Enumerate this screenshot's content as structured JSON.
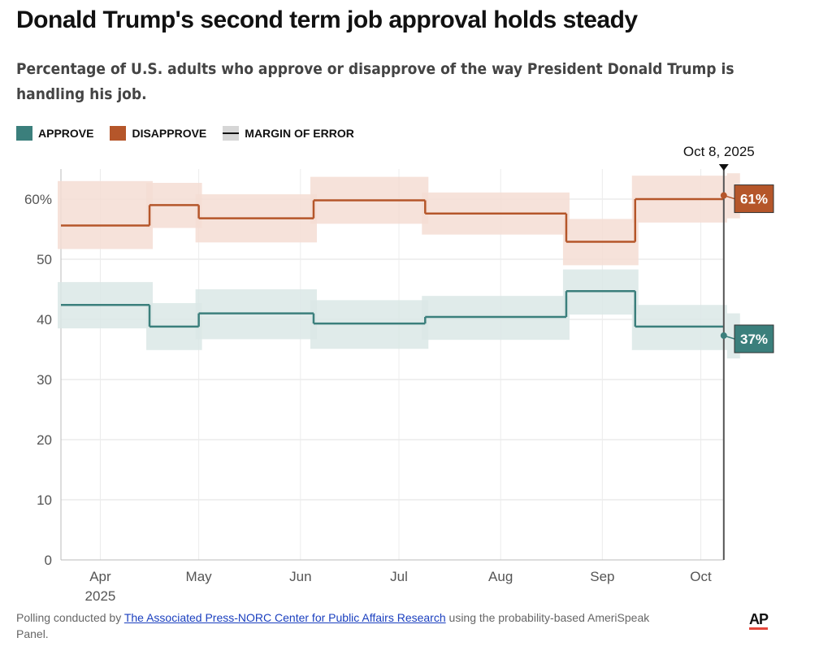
{
  "chart_data": {
    "type": "step-band",
    "title": "Donald Trump's second term job approval holds steady",
    "subtitle": "Percentage of U.S. adults who approve or disapprove of the way President Donald Trump is handling his job.",
    "legend_band_label": "MARGIN OF ERROR",
    "xlim": [
      "2025-03-20",
      "2025-10-13"
    ],
    "xticks": [
      {
        "value": "2025-04-01",
        "label": "Apr"
      },
      {
        "value": "2025-05-01",
        "label": "May"
      },
      {
        "value": "2025-06-01",
        "label": "Jun"
      },
      {
        "value": "2025-07-01",
        "label": "Jul"
      },
      {
        "value": "2025-08-01",
        "label": "Aug"
      },
      {
        "value": "2025-09-01",
        "label": "Sep"
      },
      {
        "value": "2025-10-01",
        "label": "Oct"
      }
    ],
    "x_year_label": "2025",
    "ylim": [
      0,
      65
    ],
    "yticks": [
      0,
      10,
      20,
      30,
      40,
      50,
      {
        "value": 60,
        "label": "60%"
      }
    ],
    "grid": true,
    "marker_x": "2025-10-08",
    "marker_label": "Oct 8, 2025",
    "series": [
      {
        "name": "APPROVE",
        "color": "#3b7f7c",
        "band_color": "#dbe8e6",
        "x": [
          "2025-03-20",
          "2025-04-16",
          "2025-05-01",
          "2025-06-05",
          "2025-07-09",
          "2025-08-21",
          "2025-09-11"
        ],
        "values": [
          42.4,
          38.8,
          41.0,
          39.3,
          40.4,
          44.7,
          38.8
        ],
        "upper": [
          46.2,
          42.7,
          45.0,
          43.2,
          43.9,
          48.3,
          42.4
        ],
        "lower": [
          38.5,
          34.9,
          36.7,
          35.1,
          36.6,
          40.8,
          34.9
        ],
        "latest_value": 37.3,
        "latest_upper": 41.0,
        "latest_lower": 33.5,
        "latest_label": "37%"
      },
      {
        "name": "DISAPPROVE",
        "color": "#b5562a",
        "band_color": "#f4ddd3",
        "x": [
          "2025-03-20",
          "2025-04-16",
          "2025-05-01",
          "2025-06-05",
          "2025-07-09",
          "2025-08-21",
          "2025-09-11"
        ],
        "values": [
          55.6,
          59.0,
          56.8,
          59.8,
          57.6,
          52.9,
          60.0
        ],
        "upper": [
          63.0,
          62.7,
          60.8,
          63.7,
          61.1,
          56.7,
          63.9
        ],
        "lower": [
          51.7,
          55.2,
          52.8,
          55.9,
          54.1,
          49.0,
          56.1
        ],
        "latest_value": 60.6,
        "latest_upper": 64.3,
        "latest_lower": 56.8,
        "latest_label": "61%"
      }
    ]
  },
  "footer": {
    "text_before": "Polling conducted by",
    "link": "The Associated Press-NORC Center for Public Affairs Research",
    "text_after": "using the probability-based AmeriSpeak Panel.",
    "logo": "AP"
  }
}
